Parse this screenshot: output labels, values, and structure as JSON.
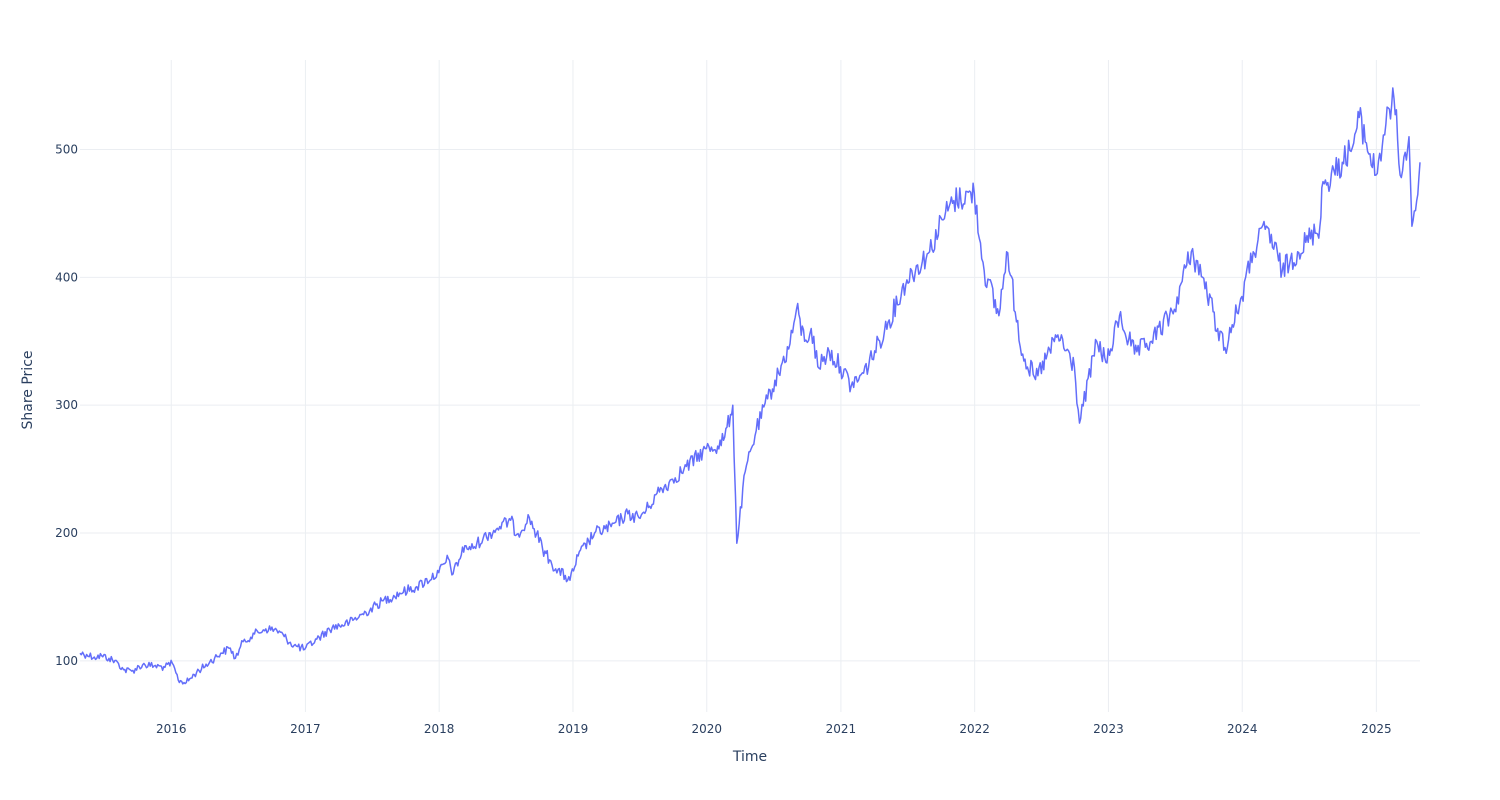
{
  "chart_data": {
    "type": "line",
    "title": "",
    "xlabel": "Time",
    "ylabel": "Share Price",
    "x_range": [
      "2015-04-27",
      "2025-04-30"
    ],
    "ylim": [
      60,
      570
    ],
    "x_ticks": [
      "2016",
      "2017",
      "2018",
      "2019",
      "2020",
      "2021",
      "2022",
      "2023",
      "2024",
      "2025"
    ],
    "y_ticks": [
      "100",
      "200",
      "300",
      "400",
      "500"
    ],
    "grid": true,
    "legend": "none",
    "colors": {
      "series": "#636efa",
      "grid": "#ebeef2",
      "text": "#2a3f5f"
    },
    "series": [
      {
        "x": [
          "2015-04-27",
          "2015-05-15",
          "2015-06-05",
          "2015-06-25",
          "2015-07-15",
          "2015-08-10",
          "2015-08-24",
          "2015-09-15",
          "2015-10-15",
          "2015-11-15",
          "2015-12-15",
          "2016-01-04",
          "2016-01-20",
          "2016-02-11",
          "2016-03-10",
          "2016-04-15",
          "2016-05-15",
          "2016-06-10",
          "2016-06-24",
          "2016-07-15",
          "2016-08-15",
          "2016-09-15",
          "2016-10-15",
          "2016-11-04",
          "2016-12-01",
          "2016-12-30",
          "2017-02-01",
          "2017-03-15",
          "2017-05-01",
          "2017-06-15",
          "2017-08-01",
          "2017-09-15",
          "2017-11-01",
          "2017-12-31",
          "2018-01-26",
          "2018-02-08",
          "2018-03-12",
          "2018-03-28",
          "2018-05-01",
          "2018-06-15",
          "2018-07-15",
          "2018-08-01",
          "2018-09-04",
          "2018-10-10",
          "2018-10-29",
          "2018-11-15",
          "2018-12-24",
          "2019-01-15",
          "2019-03-01",
          "2019-04-15",
          "2019-05-31",
          "2019-06-30",
          "2019-07-26",
          "2019-08-15",
          "2019-09-30",
          "2019-10-31",
          "2019-12-31",
          "2020-01-31",
          "2020-02-19",
          "2020-03-12",
          "2020-03-23",
          "2020-04-15",
          "2020-05-15",
          "2020-06-15",
          "2020-07-15",
          "2020-08-15",
          "2020-09-02",
          "2020-09-24",
          "2020-10-12",
          "2020-10-30",
          "2020-11-30",
          "2020-12-31",
          "2021-01-29",
          "2021-03-04",
          "2021-04-30",
          "2021-06-30",
          "2021-08-31",
          "2021-10-04",
          "2021-11-05",
          "2021-12-31",
          "2022-01-27",
          "2022-03-08",
          "2022-03-29",
          "2022-05-12",
          "2022-06-16",
          "2022-08-16",
          "2022-09-30",
          "2022-10-14",
          "2022-11-30",
          "2022-12-28",
          "2023-01-31",
          "2023-03-13",
          "2023-04-28",
          "2023-06-30",
          "2023-07-18",
          "2023-08-15",
          "2023-09-15",
          "2023-10-26",
          "2023-11-15",
          "2023-12-31",
          "2024-01-31",
          "2024-03-07",
          "2024-04-19",
          "2024-05-31",
          "2024-07-31",
          "2024-08-05",
          "2024-09-30",
          "2024-10-31",
          "2024-11-15",
          "2024-12-31",
          "2025-01-27",
          "2025-02-18",
          "2025-03-10",
          "2025-03-31",
          "2025-04-08",
          "2025-04-21",
          "2025-04-30"
        ],
        "y": [
          106,
          105,
          103,
          104,
          102,
          98,
          93,
          92,
          97,
          96,
          95,
          98,
          85,
          83,
          91,
          99,
          106,
          110,
          102,
          115,
          121,
          125,
          124,
          119,
          112,
          109,
          117,
          126,
          130,
          138,
          147,
          153,
          158,
          169,
          180,
          168,
          190,
          187,
          196,
          205,
          210,
          199,
          212,
          188,
          179,
          172,
          163,
          182,
          200,
          205,
          215,
          212,
          220,
          230,
          242,
          250,
          266,
          268,
          275,
          300,
          192,
          248,
          280,
          305,
          325,
          348,
          375,
          350,
          360,
          330,
          342,
          330,
          315,
          325,
          358,
          398,
          420,
          445,
          460,
          466,
          405,
          370,
          420,
          340,
          320,
          355,
          330,
          286,
          350,
          333,
          370,
          340,
          350,
          375,
          395,
          420,
          400,
          360,
          345,
          385,
          420,
          440,
          405,
          420,
          440,
          470,
          490,
          505,
          525,
          480,
          520,
          540,
          478,
          510,
          440,
          460,
          490
        ]
      }
    ]
  }
}
